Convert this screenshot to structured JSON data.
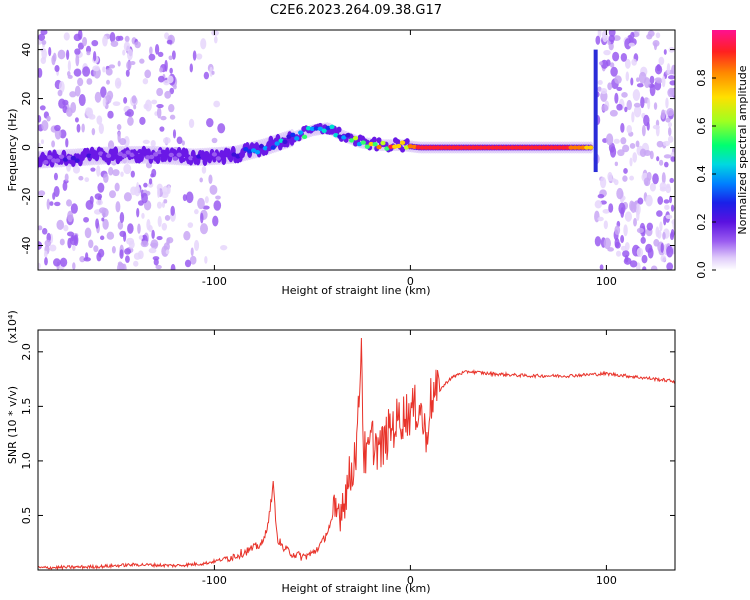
{
  "title": "C2E6.2023.264.09.38.G17",
  "colors": {
    "snr_line": "#e8332a",
    "axis": "#000000",
    "purple": "#7a1ee0",
    "colormap": [
      "#ffffff",
      "#e6d6fb",
      "#c9a7f5",
      "#9a5cf0",
      "#6a18e6",
      "#3b10d8",
      "#1030f0",
      "#00a0ff",
      "#00e0d0",
      "#30ff70",
      "#c0ff20",
      "#ffd000",
      "#ff7a00",
      "#ff2030",
      "#ff1080"
    ]
  },
  "chart_data": [
    {
      "type": "heatmap",
      "xlabel": "Height of straight line (km)",
      "ylabel": "Frequency (Hz)",
      "xlim": [
        -190,
        135
      ],
      "ylim": [
        -50,
        48
      ],
      "xticks": [
        -100,
        0,
        100
      ],
      "yticks": [
        -40,
        -20,
        0,
        20,
        40
      ],
      "colorbar": {
        "label": "Normalized spectral amplitude",
        "range": [
          0,
          1
        ],
        "ticks": [
          "0.0",
          "0.2",
          "0.4",
          "0.6",
          "0.8"
        ],
        "tick_values": [
          0.0,
          0.2,
          0.4,
          0.6,
          0.8
        ]
      },
      "ridge": {
        "x": [
          -190,
          -170,
          -150,
          -130,
          -110,
          -90,
          -75,
          -60,
          -50,
          -42,
          -35,
          -25,
          -15,
          -5,
          5,
          20,
          40,
          60,
          80,
          92
        ],
        "freq": [
          -5,
          -4,
          -3,
          -3,
          -4,
          -3,
          0,
          4,
          7,
          8,
          5,
          2,
          1,
          1,
          0,
          0,
          0,
          0,
          0,
          0
        ],
        "amplitude": [
          0.35,
          0.3,
          0.3,
          0.3,
          0.3,
          0.35,
          0.5,
          0.55,
          0.6,
          0.6,
          0.55,
          0.7,
          0.8,
          0.85,
          0.9,
          0.9,
          0.9,
          0.9,
          0.9,
          0.8
        ]
      }
    },
    {
      "type": "line",
      "xlabel": "Height of straight line (km)",
      "ylabel": "SNR (10 * v/v)",
      "y_multiplier": "(x10⁴)",
      "xlim": [
        -190,
        135
      ],
      "ylim": [
        0,
        2.2
      ],
      "xticks": [
        -100,
        0,
        100
      ],
      "yticks": [
        0.5,
        1.0,
        1.5,
        2.0
      ],
      "ytick_labels": [
        "0.5",
        "1.0",
        "1.5",
        "2.0"
      ],
      "series": [
        {
          "x": [
            -190,
            -160,
            -140,
            -120,
            -105,
            -95,
            -88,
            -80,
            -75,
            -72,
            -70,
            -68,
            -65,
            -60,
            -55,
            -50,
            -45,
            -40,
            -35,
            -30,
            -27,
            -25,
            -24,
            -22,
            -20,
            -15,
            -10,
            -5,
            0,
            5,
            8,
            10,
            15,
            20,
            25,
            30,
            40,
            60,
            80,
            100,
            120,
            135
          ],
          "y": [
            0.02,
            0.03,
            0.05,
            0.04,
            0.06,
            0.1,
            0.14,
            0.2,
            0.25,
            0.5,
            0.78,
            0.3,
            0.2,
            0.15,
            0.12,
            0.15,
            0.25,
            0.45,
            0.6,
            0.9,
            1.2,
            2.15,
            1.1,
            1.0,
            1.2,
            1.1,
            1.3,
            1.4,
            1.45,
            1.5,
            1.2,
            1.55,
            1.65,
            1.75,
            1.8,
            1.82,
            1.8,
            1.78,
            1.78,
            1.8,
            1.76,
            1.73
          ]
        }
      ]
    }
  ]
}
